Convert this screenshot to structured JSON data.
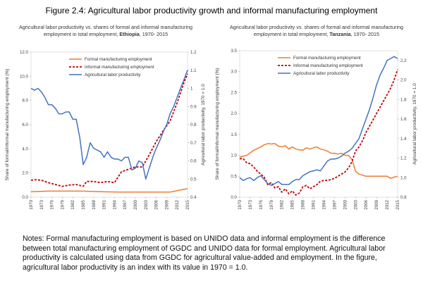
{
  "figure_title": "Figure 2.4: Agricultural labor productivity growth and informal manufacturing employment",
  "notes": "Notes: Formal manufacturing employment is based on UNIDO data and informal employment is the difference between total manufacturing employment of GGDC and UNIDO data for formal employment. Agricultural labor productivity is calculated using data from GGDC for agricultural value-added and employment. In the figure, agricultural labor productivity is an index with its value in 1970 = 1.0.",
  "colors": {
    "formal": "#ED7D31",
    "informal": "#C00000",
    "productivity": "#4472C4"
  },
  "chart_data": [
    {
      "type": "line",
      "country": "Ethiopia",
      "title_line1": "Agricultural labor productivity vs. shares of formal and informal manufacturing",
      "title_line2_prefix": "employment in total employment, ",
      "title_line2_suffix": ", 1970- 2015",
      "ylabel_left": "Share of formal/informal manufacturing employment (%)",
      "ylabel_right": "Agricultural labor productivity, 1970 = 1.0",
      "ylim_left": [
        0,
        12
      ],
      "ylim_right": [
        0.4,
        1.2
      ],
      "yticks_left": [
        "0.0",
        "2.0",
        "4.0",
        "6.0",
        "8.0",
        "10.0",
        "12.0"
      ],
      "yticks_right": [
        "0.4",
        "0.5",
        "0.6",
        "0.7",
        "0.8",
        "0.9",
        "1",
        "1.1",
        "1.2"
      ],
      "xticks": [
        "1970",
        "1973",
        "1976",
        "1979",
        "1982",
        "1985",
        "1988",
        "1991",
        "1994",
        "1997",
        "2000",
        "2003",
        "2006",
        "2009",
        "2012",
        "2015"
      ],
      "legend": [
        "Formal manufacturing employment",
        "Informal manufacturing employment",
        "Agricultural labor productivity"
      ],
      "series": [
        {
          "name": "Formal manufacturing employment",
          "axis": "left",
          "style": "solid",
          "x": [
            1970,
            1975,
            1980,
            1985,
            1990,
            1995,
            2000,
            2005,
            2010,
            2013,
            2015
          ],
          "y": [
            0.45,
            0.5,
            0.5,
            0.5,
            0.45,
            0.42,
            0.42,
            0.42,
            0.42,
            0.6,
            0.7
          ]
        },
        {
          "name": "Informal manufacturing employment",
          "axis": "left",
          "style": "dashed",
          "x": [
            1970,
            1971,
            1973,
            1975,
            1977,
            1979,
            1981,
            1983,
            1985,
            1986,
            1988,
            1990,
            1992,
            1994,
            1996,
            1998,
            2000,
            2002,
            2004,
            2006,
            2008,
            2010,
            2012,
            2014,
            2015
          ],
          "y": [
            1.4,
            1.45,
            1.4,
            1.2,
            1.05,
            0.9,
            1.0,
            1.05,
            0.9,
            1.3,
            1.3,
            1.2,
            1.3,
            1.2,
            2.1,
            2.3,
            2.5,
            2.5,
            3.5,
            4.6,
            5.5,
            6.3,
            7.8,
            9.5,
            10.2
          ]
        },
        {
          "name": "Agricultural labor productivity",
          "axis": "right",
          "style": "solid",
          "x": [
            1970,
            1971,
            1972,
            1973,
            1974,
            1975,
            1976,
            1977,
            1978,
            1979,
            1980,
            1981,
            1982,
            1983,
            1984,
            1985,
            1986,
            1987,
            1988,
            1989,
            1990,
            1991,
            1992,
            1993,
            1994,
            1995,
            1996,
            1997,
            1998,
            1999,
            2000,
            2001,
            2002,
            2003,
            2004,
            2005,
            2006,
            2007,
            2008,
            2009,
            2010,
            2011,
            2012,
            2013,
            2014,
            2015
          ],
          "y": [
            1.0,
            0.99,
            1.0,
            0.98,
            0.95,
            0.91,
            0.91,
            0.89,
            0.86,
            0.86,
            0.87,
            0.87,
            0.83,
            0.83,
            0.73,
            0.58,
            0.62,
            0.7,
            0.67,
            0.66,
            0.65,
            0.62,
            0.65,
            0.62,
            0.61,
            0.61,
            0.6,
            0.62,
            0.62,
            0.55,
            0.56,
            0.6,
            0.59,
            0.5,
            0.56,
            0.62,
            0.67,
            0.71,
            0.76,
            0.8,
            0.86,
            0.9,
            0.95,
            1.0,
            1.05,
            1.1
          ]
        }
      ]
    },
    {
      "type": "line",
      "country": "Tanzania",
      "title_line1": "Agricultural labor productivity vs. shares of formal and informal manufacturing",
      "title_line2_prefix": "employment in total employment, ",
      "title_line2_suffix": ", 1970- 2015",
      "ylabel_left": "Share of formal/informal manufacturing employment (%)",
      "ylabel_right": "Agricultural labor productivity, 1970 = 1.0",
      "ylim_left": [
        0,
        3.5
      ],
      "ylim_right": [
        0.8,
        2.3
      ],
      "yticks_left": [
        "0.0",
        "0.5",
        "1.0",
        "1.5",
        "2.0",
        "2.5",
        "3.0",
        "3.5"
      ],
      "yticks_right": [
        "0.8",
        "1.0",
        "1.2",
        "1.4",
        "1.6",
        "1.8",
        "2.0",
        "2.2"
      ],
      "xticks": [
        "1970",
        "1973",
        "1976",
        "1979",
        "1982",
        "1985",
        "1988",
        "1991",
        "1994",
        "1997",
        "2000",
        "2003",
        "2006",
        "2009",
        "2012",
        "2015"
      ],
      "legend": [
        "Formal manufacturing employment",
        "Informal manufacturing employment",
        "Agricultural labor productivity"
      ],
      "series": [
        {
          "name": "Formal manufacturing employment",
          "axis": "left",
          "style": "solid",
          "x": [
            1970,
            1972,
            1974,
            1976,
            1977,
            1978,
            1979,
            1980,
            1981,
            1982,
            1983,
            1984,
            1985,
            1986,
            1987,
            1988,
            1989,
            1990,
            1991,
            1992,
            1993,
            1994,
            1995,
            1996,
            1997,
            1998,
            1999,
            2000,
            2001,
            2002,
            2003,
            2004,
            2006,
            2008,
            2010,
            2012,
            2013,
            2014,
            2015
          ],
          "y": [
            0.96,
            1.0,
            1.12,
            1.2,
            1.25,
            1.28,
            1.27,
            1.28,
            1.22,
            1.2,
            1.23,
            1.15,
            1.2,
            1.15,
            1.13,
            1.12,
            1.18,
            1.15,
            1.18,
            1.2,
            1.15,
            1.13,
            1.1,
            1.05,
            1.05,
            1.03,
            1.05,
            1.0,
            1.0,
            0.9,
            0.62,
            0.55,
            0.5,
            0.5,
            0.5,
            0.5,
            0.45,
            0.48,
            0.5
          ]
        },
        {
          "name": "Informal manufacturing employment",
          "axis": "left",
          "style": "dashed",
          "x": [
            1970,
            1971,
            1972,
            1973,
            1974,
            1975,
            1976,
            1977,
            1978,
            1979,
            1980,
            1981,
            1982,
            1983,
            1984,
            1985,
            1986,
            1987,
            1988,
            1989,
            1990,
            1991,
            1992,
            1993,
            1994,
            1995,
            1996,
            1997,
            1998,
            1999,
            2000,
            2001,
            2002,
            2003,
            2004,
            2005,
            2006,
            2007,
            2008,
            2009,
            2010,
            2011,
            2012,
            2013,
            2014,
            2015
          ],
          "y": [
            0.92,
            0.92,
            0.82,
            0.8,
            0.72,
            0.62,
            0.55,
            0.48,
            0.3,
            0.35,
            0.22,
            0.25,
            0.12,
            0.2,
            0.08,
            0.15,
            0.05,
            0.1,
            0.25,
            0.28,
            0.2,
            0.25,
            0.3,
            0.38,
            0.4,
            0.4,
            0.42,
            0.45,
            0.5,
            0.55,
            0.6,
            0.7,
            0.85,
            1.1,
            1.2,
            1.35,
            1.55,
            1.7,
            1.85,
            2.0,
            2.15,
            2.3,
            2.45,
            2.6,
            2.8,
            3.05
          ]
        },
        {
          "name": "Agricultural labor productivity",
          "axis": "right",
          "style": "solid",
          "x": [
            1970,
            1971,
            1972,
            1973,
            1974,
            1975,
            1976,
            1977,
            1978,
            1979,
            1980,
            1981,
            1982,
            1983,
            1984,
            1985,
            1986,
            1987,
            1988,
            1989,
            1990,
            1991,
            1992,
            1993,
            1994,
            1995,
            1996,
            1997,
            1998,
            1999,
            2000,
            2001,
            2002,
            2003,
            2004,
            2005,
            2006,
            2007,
            2008,
            2009,
            2010,
            2011,
            2012,
            2013,
            2014,
            2015
          ],
          "y": [
            1.0,
            0.97,
            0.99,
            1.0,
            0.97,
            1.0,
            1.02,
            0.98,
            0.94,
            0.92,
            0.94,
            0.96,
            0.93,
            0.93,
            0.93,
            0.96,
            0.98,
            0.98,
            1.02,
            1.04,
            1.06,
            1.07,
            1.08,
            1.07,
            1.12,
            1.17,
            1.19,
            1.19,
            1.2,
            1.22,
            1.25,
            1.27,
            1.3,
            1.35,
            1.4,
            1.5,
            1.6,
            1.7,
            1.82,
            1.95,
            2.05,
            2.12,
            2.2,
            2.22,
            2.24,
            2.22
          ]
        }
      ]
    }
  ]
}
